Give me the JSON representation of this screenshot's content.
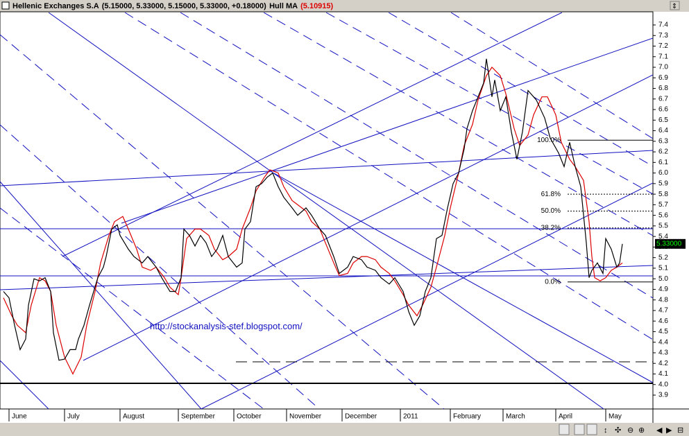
{
  "chart_data": {
    "type": "line",
    "title_info": "(5.15000, 5.33000, 5.15000, 5.33000, +0.18000)",
    "indicator_label": "(5.10915)",
    "last_price_label": "5.33000",
    "last_price": 5.33,
    "annotation": "http://stockanalysis-stef.blogspot.com/",
    "xlim": [
      0,
      234
    ],
    "xticks": [
      {
        "value": 2,
        "label": "June"
      },
      {
        "value": 22,
        "label": "July"
      },
      {
        "value": 42,
        "label": "August"
      },
      {
        "value": 63,
        "label": "September"
      },
      {
        "value": 83,
        "label": "October"
      },
      {
        "value": 102,
        "label": "November"
      },
      {
        "value": 122,
        "label": "December"
      },
      {
        "value": 143,
        "label": "2011"
      },
      {
        "value": 161,
        "label": "February"
      },
      {
        "value": 180,
        "label": "March"
      },
      {
        "value": 199,
        "label": "April"
      },
      {
        "value": 217,
        "label": "May"
      }
    ],
    "ylim": [
      3.8,
      7.5
    ],
    "yticks": [
      3.9,
      {
        "value": 4,
        "label": "4.0"
      },
      4.1,
      4.2,
      4.3,
      4.4,
      4.5,
      4.6,
      4.7,
      4.8,
      4.9,
      {
        "value": 5,
        "label": "5.0"
      },
      5.1,
      5.2,
      5.3,
      5.4,
      5.5,
      5.6,
      5.7,
      5.8,
      5.9,
      {
        "value": 6,
        "label": "6.0"
      },
      6.1,
      6.2,
      6.3,
      6.4,
      6.5,
      6.6,
      6.7,
      6.8,
      6.9,
      {
        "value": 7,
        "label": "7.0"
      },
      7.1,
      7.2,
      7.3,
      7.4
    ],
    "fib_levels": [
      {
        "label": "100.0%",
        "value": 6.31
      },
      {
        "label": "61.8%",
        "value": 5.8
      },
      {
        "label": "50.0%",
        "value": 5.64
      },
      {
        "label": "38.2%",
        "value": 5.48
      },
      {
        "label": "0.0%",
        "value": 4.97
      }
    ],
    "series": [
      {
        "name": "Hellenic Exchanges S.A",
        "color": "#000000",
        "x": [
          0,
          2,
          4,
          6,
          8,
          9,
          11,
          13,
          15,
          17,
          18,
          20,
          22,
          24,
          26,
          27,
          29,
          31,
          34,
          36,
          37,
          39,
          41,
          42,
          45,
          47,
          50,
          52,
          55,
          57,
          60,
          62,
          64,
          65,
          67,
          69,
          71,
          73,
          75,
          77,
          79,
          81,
          84,
          86,
          87,
          89,
          91,
          93,
          95,
          97,
          99,
          101,
          104,
          106,
          109,
          111,
          114,
          116,
          119,
          121,
          124,
          126,
          129,
          131,
          134,
          136,
          139,
          141,
          144,
          146,
          148,
          150,
          152,
          154,
          156,
          158,
          160,
          162,
          164,
          166,
          167,
          169,
          171,
          173,
          174,
          176,
          177,
          179,
          181,
          183,
          185,
          187,
          189,
          191,
          192,
          195,
          197,
          200,
          202,
          204,
          206,
          208,
          210,
          211,
          212,
          214,
          216,
          217,
          219,
          221,
          222,
          223
        ],
        "values": [
          4.88,
          4.82,
          4.56,
          4.33,
          4.43,
          4.75,
          5.0,
          4.98,
          5.01,
          4.88,
          4.49,
          4.23,
          4.24,
          4.33,
          4.33,
          4.43,
          4.56,
          4.75,
          5.01,
          5.11,
          5.21,
          5.47,
          5.51,
          5.41,
          5.28,
          5.21,
          5.15,
          5.21,
          5.11,
          5.01,
          4.88,
          4.88,
          5.01,
          5.47,
          5.41,
          5.31,
          5.41,
          5.34,
          5.21,
          5.28,
          5.41,
          5.21,
          5.11,
          5.15,
          5.47,
          5.54,
          5.87,
          5.9,
          5.96,
          6.0,
          5.87,
          5.77,
          5.67,
          5.6,
          5.67,
          5.6,
          5.47,
          5.41,
          5.21,
          5.05,
          5.11,
          5.21,
          5.18,
          5.11,
          5.08,
          5.01,
          4.95,
          5.01,
          4.88,
          4.69,
          4.56,
          4.65,
          4.88,
          5.01,
          5.38,
          5.41,
          5.67,
          5.9,
          6.0,
          6.23,
          6.42,
          6.59,
          6.72,
          6.85,
          7.08,
          6.72,
          6.88,
          6.59,
          6.72,
          6.39,
          6.13,
          6.39,
          6.78,
          6.72,
          6.69,
          6.52,
          6.33,
          6.19,
          6.06,
          6.29,
          6.06,
          5.87,
          5.34,
          5.01,
          5.08,
          5.15,
          5.05,
          5.38,
          5.28,
          5.11,
          5.15,
          5.33
        ]
      },
      {
        "name": "Hull MA",
        "color": "#dd0000",
        "x": [
          0,
          3,
          5,
          8,
          10,
          13,
          15,
          17,
          19,
          22,
          25,
          28,
          30,
          33,
          35,
          38,
          40,
          43,
          45,
          48,
          50,
          53,
          55,
          58,
          60,
          63,
          64,
          66,
          69,
          71,
          74,
          76,
          79,
          81,
          84,
          86,
          89,
          91,
          94,
          96,
          99,
          101,
          104,
          106,
          109,
          111,
          114,
          116,
          119,
          121,
          124,
          126,
          129,
          131,
          134,
          136,
          139,
          141,
          144,
          146,
          149,
          151,
          154,
          156,
          159,
          161,
          164,
          166,
          169,
          171,
          174,
          176,
          179,
          181,
          184,
          186,
          189,
          191,
          194,
          196,
          199,
          201,
          204,
          206,
          209,
          211,
          212,
          213,
          215,
          217,
          219,
          221,
          223
        ],
        "values": [
          4.82,
          4.65,
          4.56,
          4.49,
          4.75,
          5.01,
          4.98,
          4.88,
          4.56,
          4.26,
          4.1,
          4.26,
          4.56,
          4.88,
          5.15,
          5.41,
          5.54,
          5.59,
          5.47,
          5.28,
          5.11,
          5.08,
          5.11,
          5.01,
          4.92,
          4.85,
          5.01,
          5.38,
          5.47,
          5.47,
          5.41,
          5.28,
          5.18,
          5.21,
          5.28,
          5.47,
          5.67,
          5.83,
          5.96,
          6.03,
          6.0,
          5.87,
          5.74,
          5.7,
          5.64,
          5.54,
          5.47,
          5.34,
          5.15,
          5.03,
          5.05,
          5.15,
          5.21,
          5.21,
          5.18,
          5.11,
          5.05,
          4.98,
          4.85,
          4.75,
          4.65,
          4.75,
          4.92,
          5.11,
          5.41,
          5.67,
          6.0,
          6.26,
          6.46,
          6.69,
          6.92,
          7.0,
          6.92,
          6.75,
          6.42,
          6.26,
          6.36,
          6.55,
          6.72,
          6.72,
          6.55,
          6.29,
          6.13,
          6.06,
          5.93,
          5.54,
          5.21,
          5.01,
          4.98,
          5.01,
          5.08,
          5.11,
          5.15
        ]
      }
    ]
  }
}
